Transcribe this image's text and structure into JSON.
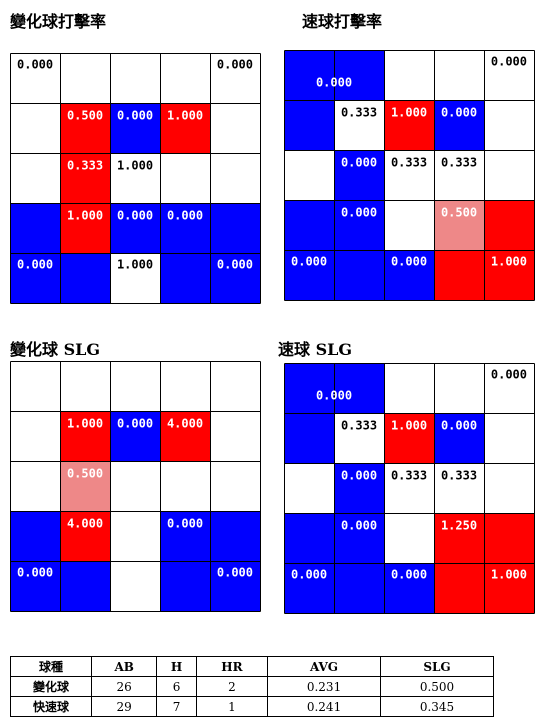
{
  "colors": {
    "red": "#ff0000",
    "blue": "#0000ff",
    "lightRed": "#ee8888",
    "white": "#ffffff",
    "grid": "#000000"
  },
  "chart_data": [
    {
      "type": "heatmap",
      "title": "變化球打擊率",
      "outer_zones": {
        "top_left": "blank",
        "top_right": "blank",
        "bottom_left": "blue",
        "bottom_right": "blue"
      },
      "outer_labels": [
        "0.000",
        "0.000",
        "0.000",
        "0.000"
      ],
      "outer_middle": {
        "top": "blank",
        "left": "blank",
        "right": "blank",
        "bottom": "blank"
      },
      "bottom_middle_label": "1.000",
      "inner_colors": [
        [
          "red",
          "blue",
          "red"
        ],
        [
          "red",
          "blank",
          "blank"
        ],
        [
          "red",
          "blue",
          "blue"
        ]
      ],
      "inner_values": [
        [
          "0.500",
          "0.000",
          "1.000"
        ],
        [
          "0.333",
          "1.000",
          ""
        ],
        [
          "1.000",
          "0.000",
          "0.000"
        ]
      ]
    },
    {
      "type": "heatmap",
      "title": "速球打擊率",
      "outer_zones": {
        "top_left": "blue",
        "top_right": "blank",
        "bottom_left": "blue",
        "bottom_right": "red"
      },
      "outer_labels": [
        "0.000",
        "0.000",
        "0.000",
        "1.000"
      ],
      "outer_middle": {
        "top": "blank",
        "left": "blank",
        "right": "blank",
        "bottom": "blue"
      },
      "bottom_middle_label": "0.000",
      "inner_colors": [
        [
          "blank",
          "red",
          "blue"
        ],
        [
          "blue",
          "blank",
          "blank"
        ],
        [
          "blue",
          "blank",
          "lightRed"
        ]
      ],
      "inner_values": [
        [
          "0.333",
          "1.000",
          "0.000"
        ],
        [
          "0.000",
          "0.333",
          "0.333"
        ],
        [
          "0.000",
          "",
          "0.500"
        ]
      ]
    },
    {
      "type": "heatmap",
      "title": "變化球 SLG",
      "outer_zones": {
        "top_left": "blank",
        "top_right": "blank",
        "bottom_left": "blue",
        "bottom_right": "blue"
      },
      "outer_labels": [
        "",
        "",
        "0.000",
        "0.000"
      ],
      "outer_middle": {
        "top": "blank",
        "left": "blank",
        "right": "blank",
        "bottom": "blank"
      },
      "bottom_middle_label": "",
      "inner_colors": [
        [
          "red",
          "blue",
          "red"
        ],
        [
          "lightRed",
          "blank",
          "blank"
        ],
        [
          "red",
          "blank",
          "blue"
        ]
      ],
      "inner_values": [
        [
          "1.000",
          "0.000",
          "4.000"
        ],
        [
          "0.500",
          "",
          ""
        ],
        [
          "4.000",
          "",
          "0.000"
        ]
      ]
    },
    {
      "type": "heatmap",
      "title": "速球 SLG",
      "outer_zones": {
        "top_left": "blue",
        "top_right": "blank",
        "bottom_left": "blue",
        "bottom_right": "red"
      },
      "outer_labels": [
        "0.000",
        "0.000",
        "0.000",
        "1.000"
      ],
      "outer_middle": {
        "top": "blank",
        "left": "blank",
        "right": "blank",
        "bottom": "blue"
      },
      "bottom_middle_label": "0.000",
      "inner_colors": [
        [
          "blank",
          "red",
          "blue"
        ],
        [
          "blue",
          "blank",
          "blank"
        ],
        [
          "blue",
          "blank",
          "red"
        ]
      ],
      "inner_values": [
        [
          "0.333",
          "1.000",
          "0.000"
        ],
        [
          "0.000",
          "0.333",
          "0.333"
        ],
        [
          "0.000",
          "",
          "1.250"
        ]
      ]
    },
    {
      "type": "table",
      "headers": [
        "球種",
        "AB",
        "H",
        "HR",
        "AVG",
        "SLG"
      ],
      "rows": [
        [
          "變化球",
          "26",
          "6",
          "2",
          "0.231",
          "0.500"
        ],
        [
          "快速球",
          "29",
          "7",
          "1",
          "0.241",
          "0.345"
        ]
      ]
    }
  ]
}
